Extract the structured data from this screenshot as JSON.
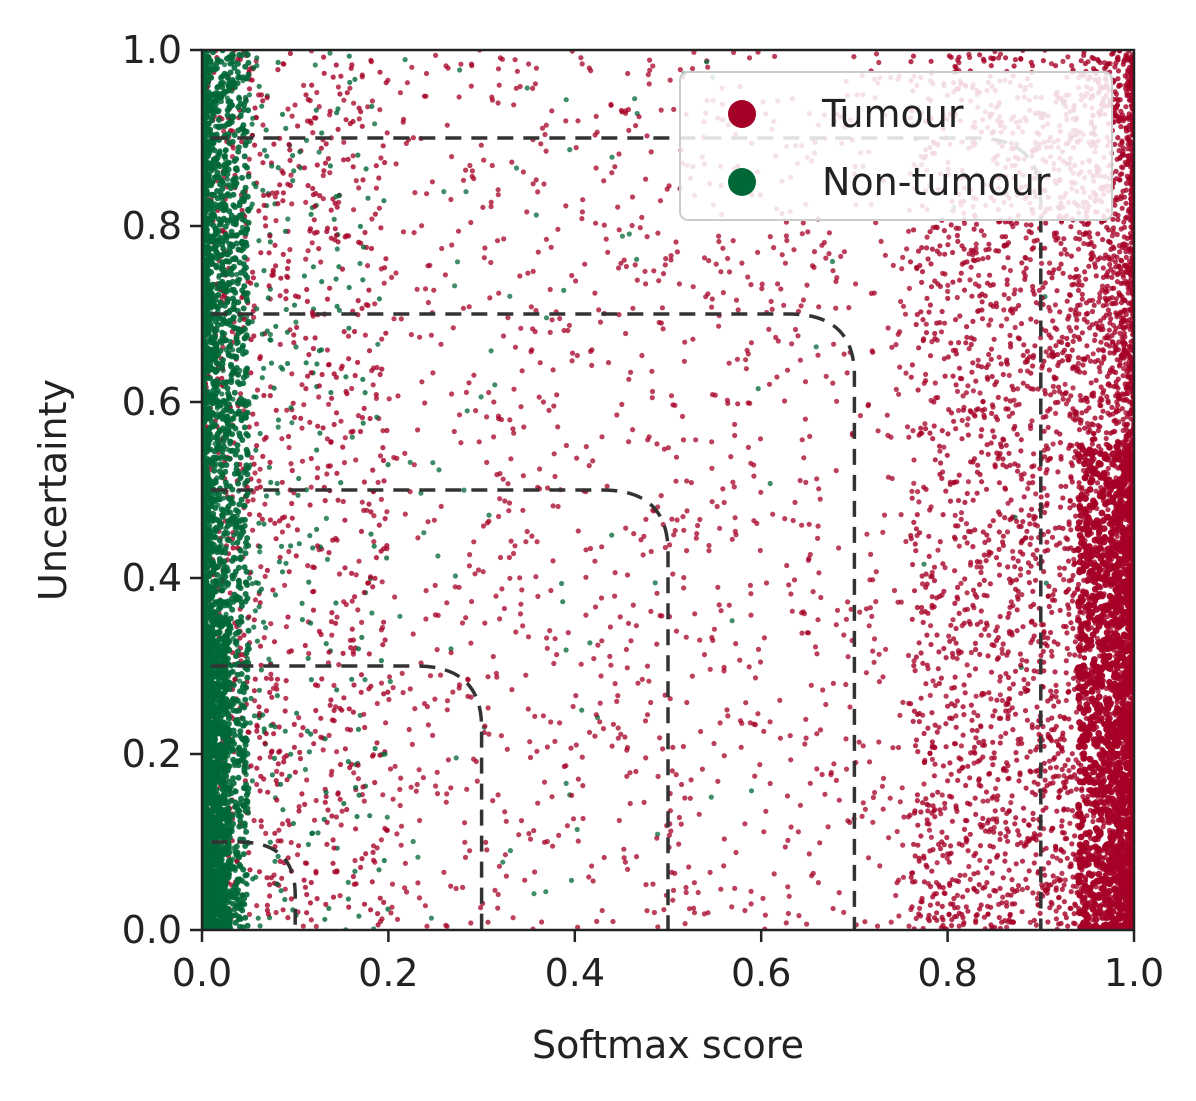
{
  "colors": {
    "tumour": "#a50026",
    "non_tumour": "#006837",
    "boundary": "#333333"
  },
  "chart_data": {
    "type": "scatter",
    "xlabel": "Softmax score",
    "ylabel": "Uncertainty",
    "xlim": [
      0.0,
      1.0
    ],
    "ylim": [
      0.0,
      1.0
    ],
    "x_ticks": [
      "0.0",
      "0.2",
      "0.4",
      "0.6",
      "0.8",
      "1.0"
    ],
    "y_ticks": [
      "0.0",
      "0.2",
      "0.4",
      "0.6",
      "0.8",
      "1.0"
    ],
    "grid": false,
    "legend": {
      "placement": "top-right",
      "entries": [
        "Tumour",
        "Non-tumour"
      ]
    },
    "series": [
      {
        "name": "Tumour",
        "color": "#a50026",
        "density": "dense near x=1.0, sparse scatter across the unit square"
      },
      {
        "name": "Non-tumour",
        "color": "#006837",
        "density": "dense near x=0.0, sparse scatter at low softmax scores"
      }
    ],
    "thresholds": [
      0.1,
      0.3,
      0.5,
      0.7,
      0.9
    ],
    "threshold_style": "dashed rounded-corner boundaries: y=t for x<~t-0.07, x=t for y<~t-0.07"
  }
}
